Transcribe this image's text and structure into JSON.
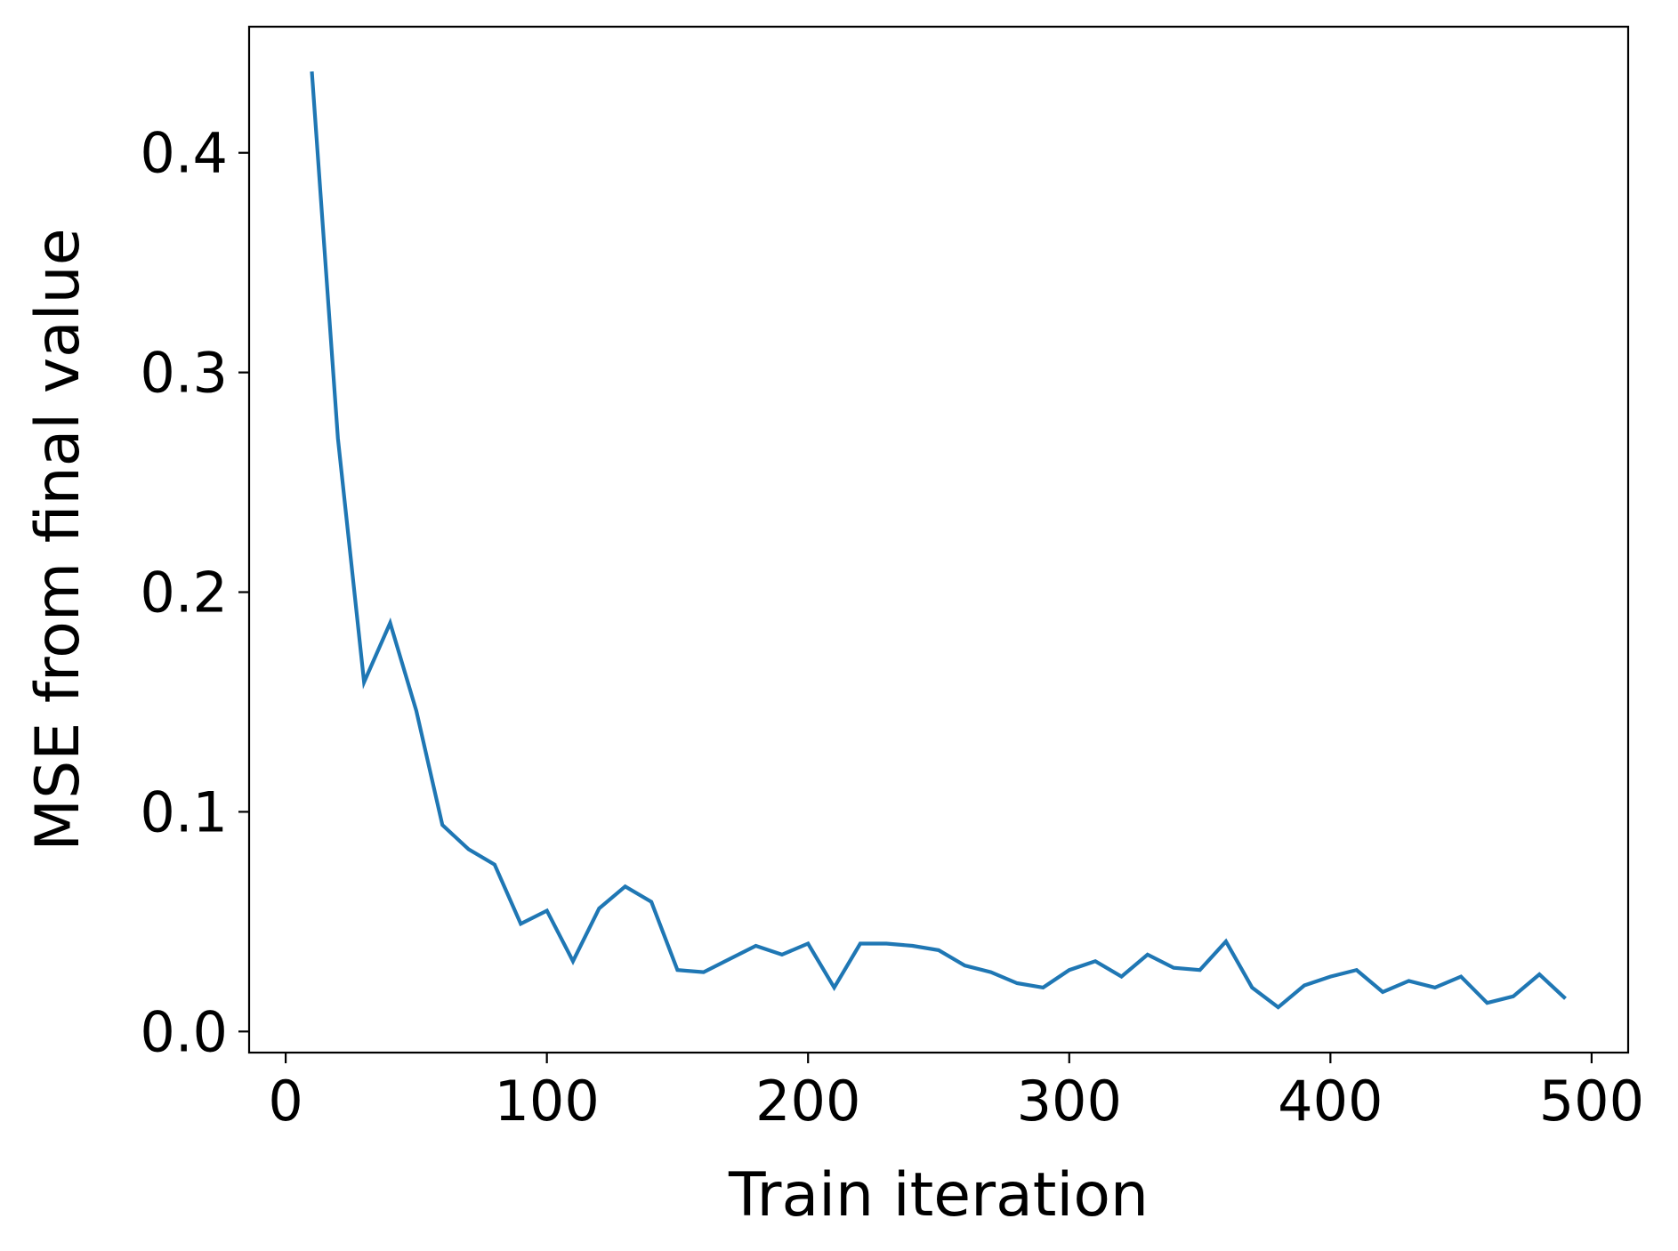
{
  "chart_data": {
    "type": "line",
    "title": "",
    "xlabel": "Train iteration",
    "ylabel": "MSE from final value",
    "xlim": [
      -14,
      514
    ],
    "ylim": [
      -0.0096,
      0.4574
    ],
    "xticks": [
      0,
      100,
      200,
      300,
      400,
      500
    ],
    "xtick_labels": [
      "0",
      "100",
      "200",
      "300",
      "400",
      "500"
    ],
    "yticks": [
      0.0,
      0.1,
      0.2,
      0.3,
      0.4
    ],
    "ytick_labels": [
      "0.0",
      "0.1",
      "0.2",
      "0.3",
      "0.4"
    ],
    "grid": false,
    "legend": "none",
    "series": [
      {
        "color": "#1f77b4",
        "x": [
          10,
          20,
          30,
          40,
          50,
          60,
          70,
          80,
          90,
          100,
          110,
          120,
          130,
          140,
          150,
          160,
          170,
          180,
          190,
          200,
          210,
          220,
          230,
          240,
          250,
          260,
          270,
          280,
          290,
          300,
          310,
          320,
          330,
          340,
          350,
          360,
          370,
          380,
          390,
          400,
          410,
          420,
          430,
          440,
          450,
          460,
          470,
          480,
          490
        ],
        "values": [
          0.437,
          0.27,
          0.159,
          0.186,
          0.146,
          0.094,
          0.083,
          0.076,
          0.049,
          0.055,
          0.032,
          0.056,
          0.066,
          0.059,
          0.028,
          0.027,
          0.033,
          0.039,
          0.035,
          0.04,
          0.02,
          0.04,
          0.04,
          0.039,
          0.037,
          0.03,
          0.027,
          0.022,
          0.02,
          0.028,
          0.032,
          0.025,
          0.035,
          0.029,
          0.028,
          0.041,
          0.02,
          0.011,
          0.021,
          0.025,
          0.028,
          0.018,
          0.023,
          0.02,
          0.025,
          0.013,
          0.016,
          0.026,
          0.015
        ]
      }
    ]
  }
}
